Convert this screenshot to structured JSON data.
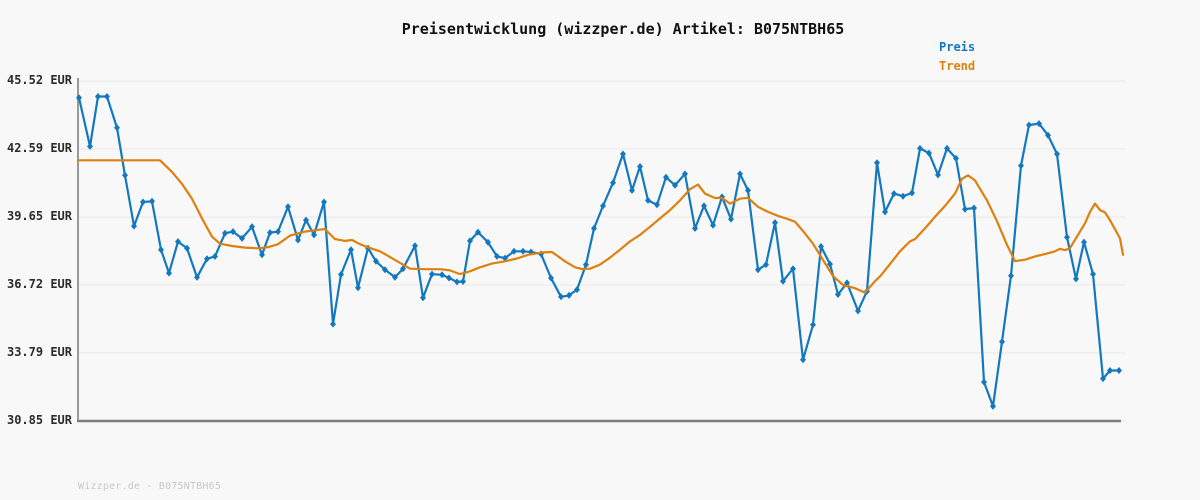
{
  "page": {
    "background": "#f8f8f8"
  },
  "header": {
    "title": "Preisentwicklung (wizzper.de) Artikel: B075NTBH65"
  },
  "legend": {
    "items": [
      {
        "label": "Preis",
        "color": "#1478be"
      },
      {
        "label": "Trend",
        "color": "#de800d"
      }
    ]
  },
  "footer": {
    "watermark": "Wizzper.de - B075NTBH65"
  },
  "chart_data": {
    "type": "line",
    "title": "Preisentwicklung (wizzper.de) Artikel: B075NTBH65",
    "unit": "EUR",
    "grid": true,
    "legend_position": "top-right",
    "ylim": [
      30.85,
      45.52
    ],
    "y_axis": {
      "tick_labels": [
        "45.52 EUR",
        "42.59 EUR",
        "39.65 EUR",
        "36.72 EUR",
        "33.79 EUR",
        "30.85 EUR"
      ],
      "tick_values": [
        45.52,
        42.59,
        39.65,
        36.72,
        33.79,
        30.85
      ]
    },
    "series": [
      {
        "name": "Preis",
        "color": "#1478be",
        "marker": "diamond",
        "points": [
          [
            79,
            44.8
          ],
          [
            90,
            42.7
          ],
          [
            98,
            44.85
          ],
          [
            107,
            44.85
          ],
          [
            117,
            43.5
          ],
          [
            125,
            41.45
          ],
          [
            134,
            39.26
          ],
          [
            143,
            40.3
          ],
          [
            152,
            40.33
          ],
          [
            161,
            38.24
          ],
          [
            169,
            37.23
          ],
          [
            178,
            38.59
          ],
          [
            187,
            38.3
          ],
          [
            197,
            37.05
          ],
          [
            207,
            37.85
          ],
          [
            215,
            37.95
          ],
          [
            225,
            38.95
          ],
          [
            233,
            39.02
          ],
          [
            242,
            38.73
          ],
          [
            252,
            39.23
          ],
          [
            262,
            38.02
          ],
          [
            270,
            38.98
          ],
          [
            278,
            39.02
          ],
          [
            288,
            40.09
          ],
          [
            298,
            38.66
          ],
          [
            306,
            39.52
          ],
          [
            314,
            38.88
          ],
          [
            324,
            40.3
          ],
          [
            333,
            35.03
          ],
          [
            341,
            37.17
          ],
          [
            351,
            38.24
          ],
          [
            358,
            36.6
          ],
          [
            368,
            38.31
          ],
          [
            376,
            37.74
          ],
          [
            385,
            37.38
          ],
          [
            395,
            37.05
          ],
          [
            403,
            37.42
          ],
          [
            415,
            38.41
          ],
          [
            423,
            36.17
          ],
          [
            432,
            37.19
          ],
          [
            442,
            37.16
          ],
          [
            449,
            37.02
          ],
          [
            457,
            36.85
          ],
          [
            463,
            36.87
          ],
          [
            470,
            38.62
          ],
          [
            478,
            39.0
          ],
          [
            488,
            38.56
          ],
          [
            497,
            37.95
          ],
          [
            505,
            37.88
          ],
          [
            514,
            38.17
          ],
          [
            523,
            38.17
          ],
          [
            531,
            38.14
          ],
          [
            541,
            38.06
          ],
          [
            551,
            37.02
          ],
          [
            561,
            36.21
          ],
          [
            569,
            36.27
          ],
          [
            577,
            36.52
          ],
          [
            586,
            37.6
          ],
          [
            594,
            39.16
          ],
          [
            603,
            40.13
          ],
          [
            613,
            41.13
          ],
          [
            623,
            42.37
          ],
          [
            632,
            40.8
          ],
          [
            640,
            41.83
          ],
          [
            648,
            40.37
          ],
          [
            657,
            40.18
          ],
          [
            666,
            41.37
          ],
          [
            675,
            41.02
          ],
          [
            685,
            41.51
          ],
          [
            695,
            39.16
          ],
          [
            704,
            40.13
          ],
          [
            713,
            39.3
          ],
          [
            722,
            40.52
          ],
          [
            731,
            39.56
          ],
          [
            740,
            41.51
          ],
          [
            748,
            40.8
          ],
          [
            758,
            37.38
          ],
          [
            766,
            37.6
          ],
          [
            775,
            39.41
          ],
          [
            783,
            36.88
          ],
          [
            793,
            37.42
          ],
          [
            803,
            33.49
          ],
          [
            813,
            35.0
          ],
          [
            821,
            38.38
          ],
          [
            830,
            37.62
          ],
          [
            838,
            36.31
          ],
          [
            847,
            36.81
          ],
          [
            858,
            35.6
          ],
          [
            867,
            36.45
          ],
          [
            877,
            41.99
          ],
          [
            885,
            39.87
          ],
          [
            894,
            40.66
          ],
          [
            903,
            40.55
          ],
          [
            912,
            40.69
          ],
          [
            920,
            42.61
          ],
          [
            929,
            42.41
          ],
          [
            938,
            41.47
          ],
          [
            947,
            42.61
          ],
          [
            956,
            42.18
          ],
          [
            965,
            39.99
          ],
          [
            974,
            40.04
          ],
          [
            984,
            32.53
          ],
          [
            993,
            31.49
          ],
          [
            1002,
            34.27
          ],
          [
            1011,
            37.12
          ],
          [
            1021,
            41.87
          ],
          [
            1029,
            43.62
          ],
          [
            1039,
            43.68
          ],
          [
            1048,
            43.18
          ],
          [
            1057,
            42.37
          ],
          [
            1067,
            38.78
          ],
          [
            1076,
            36.98
          ],
          [
            1084,
            38.57
          ],
          [
            1093,
            37.19
          ],
          [
            1103,
            32.68
          ],
          [
            1110,
            33.03
          ],
          [
            1119,
            33.03
          ]
        ]
      },
      {
        "name": "Trend",
        "color": "#de800d",
        "marker": "none",
        "points": [
          [
            78,
            42.1
          ],
          [
            120,
            42.1
          ],
          [
            160,
            42.1
          ],
          [
            172,
            41.6
          ],
          [
            182,
            41.08
          ],
          [
            192,
            40.44
          ],
          [
            202,
            39.59
          ],
          [
            212,
            38.8
          ],
          [
            220,
            38.5
          ],
          [
            232,
            38.4
          ],
          [
            245,
            38.33
          ],
          [
            258,
            38.3
          ],
          [
            268,
            38.35
          ],
          [
            278,
            38.48
          ],
          [
            290,
            38.85
          ],
          [
            305,
            39.02
          ],
          [
            318,
            39.1
          ],
          [
            325,
            39.13
          ],
          [
            335,
            38.7
          ],
          [
            345,
            38.62
          ],
          [
            352,
            38.66
          ],
          [
            360,
            38.48
          ],
          [
            370,
            38.31
          ],
          [
            380,
            38.17
          ],
          [
            395,
            37.8
          ],
          [
            410,
            37.42
          ],
          [
            425,
            37.4
          ],
          [
            440,
            37.4
          ],
          [
            450,
            37.35
          ],
          [
            460,
            37.19
          ],
          [
            470,
            37.31
          ],
          [
            480,
            37.48
          ],
          [
            492,
            37.64
          ],
          [
            505,
            37.74
          ],
          [
            517,
            37.86
          ],
          [
            528,
            38.02
          ],
          [
            542,
            38.12
          ],
          [
            552,
            38.14
          ],
          [
            565,
            37.74
          ],
          [
            575,
            37.48
          ],
          [
            582,
            37.41
          ],
          [
            590,
            37.42
          ],
          [
            600,
            37.6
          ],
          [
            610,
            37.9
          ],
          [
            620,
            38.24
          ],
          [
            630,
            38.6
          ],
          [
            640,
            38.88
          ],
          [
            650,
            39.23
          ],
          [
            660,
            39.59
          ],
          [
            670,
            39.95
          ],
          [
            680,
            40.37
          ],
          [
            690,
            40.85
          ],
          [
            698,
            41.05
          ],
          [
            705,
            40.66
          ],
          [
            715,
            40.47
          ],
          [
            722,
            40.47
          ],
          [
            730,
            40.23
          ],
          [
            740,
            40.44
          ],
          [
            748,
            40.48
          ],
          [
            758,
            40.09
          ],
          [
            768,
            39.87
          ],
          [
            778,
            39.7
          ],
          [
            788,
            39.56
          ],
          [
            795,
            39.45
          ],
          [
            803,
            39.05
          ],
          [
            813,
            38.5
          ],
          [
            823,
            37.8
          ],
          [
            833,
            37.1
          ],
          [
            843,
            36.72
          ],
          [
            855,
            36.58
          ],
          [
            865,
            36.39
          ],
          [
            875,
            36.88
          ],
          [
            880,
            37.09
          ],
          [
            890,
            37.62
          ],
          [
            900,
            38.17
          ],
          [
            910,
            38.6
          ],
          [
            915,
            38.7
          ],
          [
            925,
            39.16
          ],
          [
            935,
            39.66
          ],
          [
            945,
            40.13
          ],
          [
            955,
            40.66
          ],
          [
            962,
            41.3
          ],
          [
            968,
            41.45
          ],
          [
            975,
            41.23
          ],
          [
            987,
            40.37
          ],
          [
            997,
            39.47
          ],
          [
            1007,
            38.45
          ],
          [
            1015,
            37.75
          ],
          [
            1025,
            37.81
          ],
          [
            1035,
            37.95
          ],
          [
            1045,
            38.05
          ],
          [
            1055,
            38.17
          ],
          [
            1060,
            38.28
          ],
          [
            1065,
            38.22
          ],
          [
            1070,
            38.31
          ],
          [
            1080,
            39.02
          ],
          [
            1085,
            39.38
          ],
          [
            1090,
            39.87
          ],
          [
            1095,
            40.23
          ],
          [
            1100,
            39.95
          ],
          [
            1105,
            39.85
          ],
          [
            1110,
            39.52
          ],
          [
            1120,
            38.73
          ],
          [
            1123,
            38.02
          ]
        ]
      }
    ]
  }
}
